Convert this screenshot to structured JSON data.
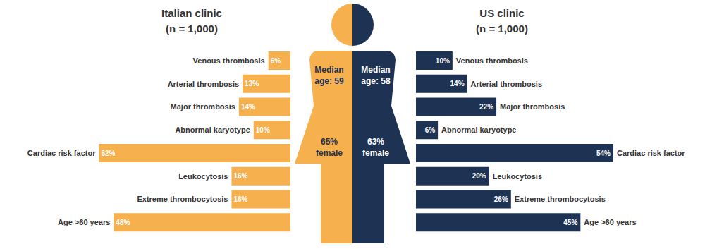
{
  "chart_data": [
    {
      "type": "bar",
      "title": "Italian clinic",
      "subtitle": "(n = 1,000)",
      "orientation": "horizontal",
      "categories": [
        "Venous thrombosis",
        "Arterial thrombosis",
        "Major thrombosis",
        "Abnormal karyotype",
        "Cardiac risk factor",
        "Leukocytosis",
        "Extreme thrombocytosis",
        "Age >60 years"
      ],
      "values": [
        6,
        13,
        14,
        10,
        52,
        16,
        16,
        48
      ],
      "value_labels": [
        "6%",
        "13%",
        "14%",
        "10%",
        "52%",
        "16%",
        "16%",
        "48%"
      ],
      "color": "#f6b04e",
      "data_labels": true,
      "xlim": [
        0,
        54
      ],
      "annotations": [
        "Median age: 59",
        "65% female"
      ]
    },
    {
      "type": "bar",
      "title": "US clinic",
      "subtitle": "(n = 1,000)",
      "orientation": "horizontal",
      "categories": [
        "Venous thrombosis",
        "Arterial thrombosis",
        "Major thrombosis",
        "Abnormal karyotype",
        "Cardiac risk factor",
        "Leukocytosis",
        "Extreme thrombocytosis",
        "Age >60 years"
      ],
      "values": [
        10,
        14,
        22,
        6,
        54,
        20,
        26,
        45
      ],
      "value_labels": [
        "10%",
        "14%",
        "22%",
        "6%",
        "54%",
        "20%",
        "26%",
        "45%"
      ],
      "color": "#1e3354",
      "data_labels": true,
      "xlim": [
        0,
        54
      ],
      "annotations": [
        "Median age: 58",
        "63% female"
      ]
    }
  ]
}
